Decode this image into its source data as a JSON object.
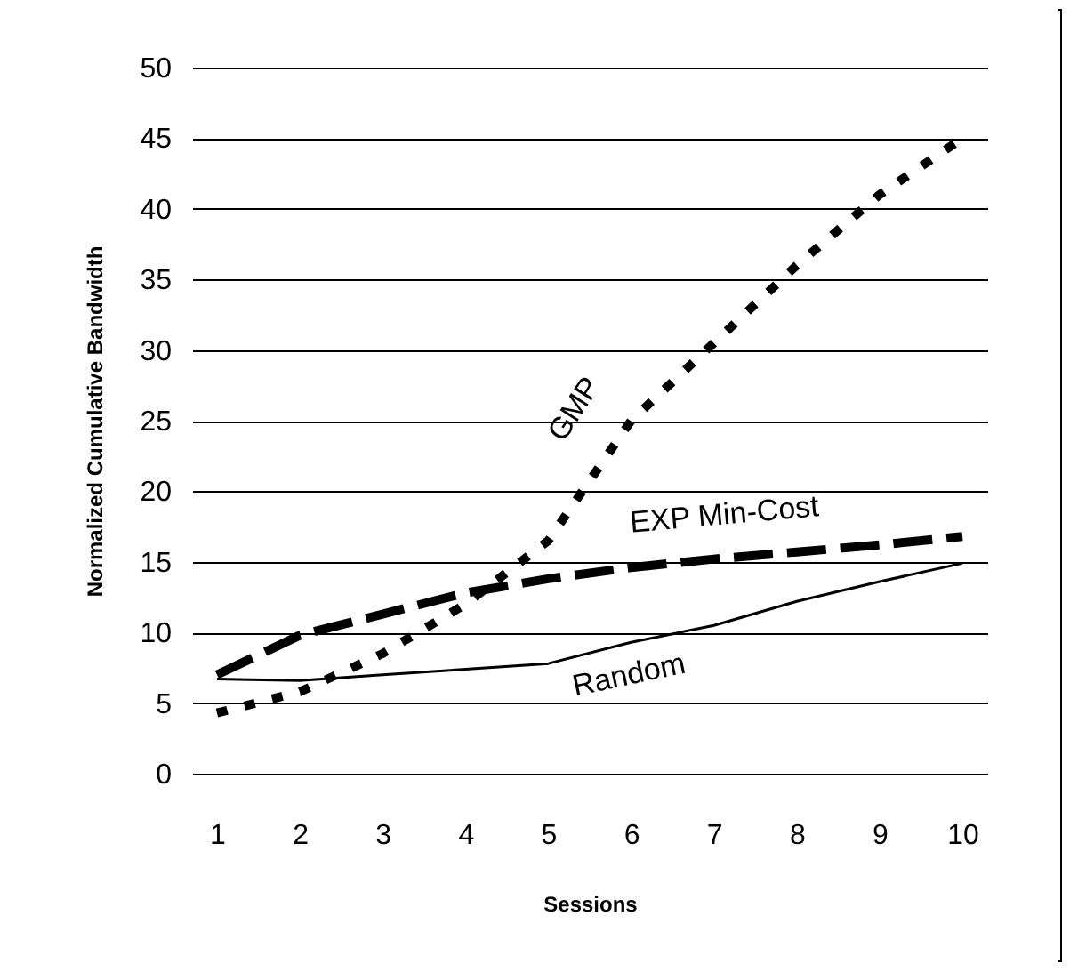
{
  "chart_data": {
    "type": "line",
    "xlabel": "Sessions",
    "ylabel": "Normalized Cumulative Bandwidth",
    "categories": [
      "1",
      "2",
      "3",
      "4",
      "5",
      "6",
      "7",
      "8",
      "9",
      "10"
    ],
    "series": [
      {
        "name": "GMP",
        "color": "#000000",
        "line_style": "dotted",
        "values": [
          4.3,
          5.8,
          8.5,
          12,
          16.5,
          25,
          30.5,
          36,
          41,
          45
        ]
      },
      {
        "name": "EXP Min-Cost",
        "color": "#000000",
        "line_style": "dashed",
        "values": [
          7,
          9.8,
          11.3,
          12.8,
          13.8,
          14.6,
          15.2,
          15.7,
          16.2,
          16.8
        ]
      },
      {
        "name": "Random",
        "color": "#000000",
        "line_style": "solid",
        "values": [
          6.7,
          6.6,
          7,
          7.4,
          7.8,
          9.3,
          10.5,
          12.2,
          13.6,
          14.9
        ]
      }
    ],
    "ylim": [
      0,
      50
    ],
    "yticks": [
      0,
      5,
      10,
      15,
      20,
      25,
      30,
      35,
      40,
      45,
      50
    ],
    "grid": "y",
    "marker": "none"
  }
}
